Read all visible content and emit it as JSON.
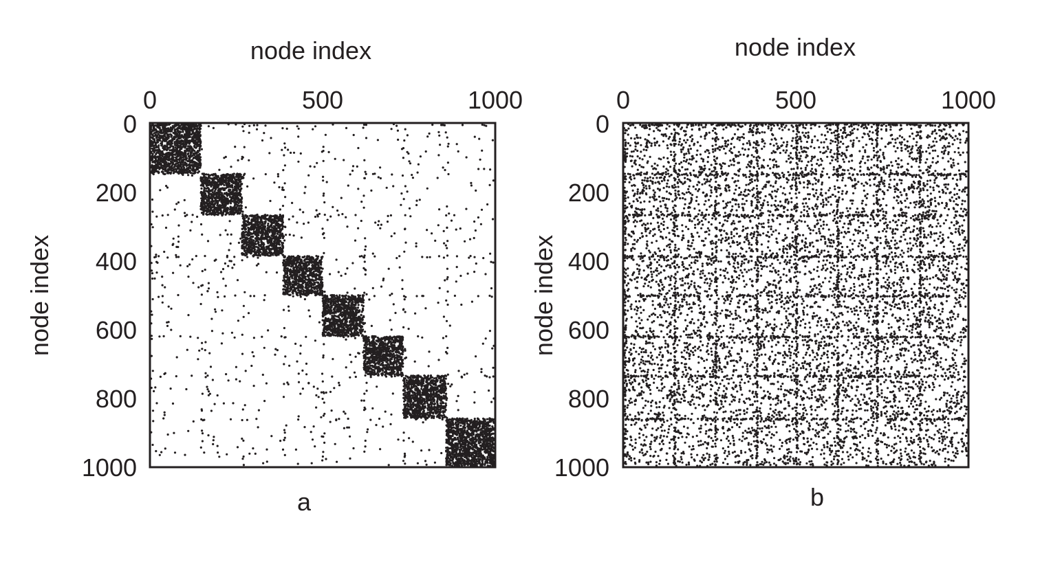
{
  "chart_data": [
    {
      "type": "scatter",
      "panel_label": "a",
      "xlabel": "node index",
      "ylabel": "node index",
      "xlim": [
        0,
        1000
      ],
      "ylim": [
        0,
        1000
      ],
      "x_ticks": [
        0,
        500,
        1000
      ],
      "y_ticks": [
        0,
        200,
        400,
        600,
        800,
        1000
      ],
      "x_tick_labels": [
        "0",
        "500",
        "1000"
      ],
      "y_tick_labels": [
        "0",
        "200",
        "400",
        "600",
        "800",
        "1000"
      ],
      "x_axis_position": "top",
      "y_axis_inverted": true,
      "grid": false,
      "description": "adjacency matrix with modular (community) structure",
      "blocks": [
        {
          "start": 0,
          "end": 145
        },
        {
          "start": 145,
          "end": 265
        },
        {
          "start": 265,
          "end": 385
        },
        {
          "start": 385,
          "end": 500
        },
        {
          "start": 500,
          "end": 620
        },
        {
          "start": 620,
          "end": 735
        },
        {
          "start": 735,
          "end": 860
        },
        {
          "start": 860,
          "end": 1000
        }
      ],
      "block_density": 0.06,
      "background_density": 0.003,
      "point_color": "#231f20"
    },
    {
      "type": "scatter",
      "panel_label": "b",
      "xlabel": "node index",
      "ylabel": "node index",
      "xlim": [
        0,
        1000
      ],
      "ylim": [
        0,
        1000
      ],
      "x_ticks": [
        0,
        500,
        1000
      ],
      "y_ticks": [
        0,
        200,
        400,
        600,
        800,
        1000
      ],
      "x_tick_labels": [
        "0",
        "500",
        "1000"
      ],
      "y_tick_labels": [
        "0",
        "200",
        "400",
        "600",
        "800",
        "1000"
      ],
      "x_axis_position": "top",
      "y_axis_inverted": true,
      "grid": false,
      "description": "adjacency matrix of randomized network with grid-like hub rows/columns",
      "hub_lines": [
        0,
        145,
        265,
        385,
        500,
        620,
        735,
        860
      ],
      "background_density": 0.011,
      "point_color": "#231f20"
    }
  ]
}
